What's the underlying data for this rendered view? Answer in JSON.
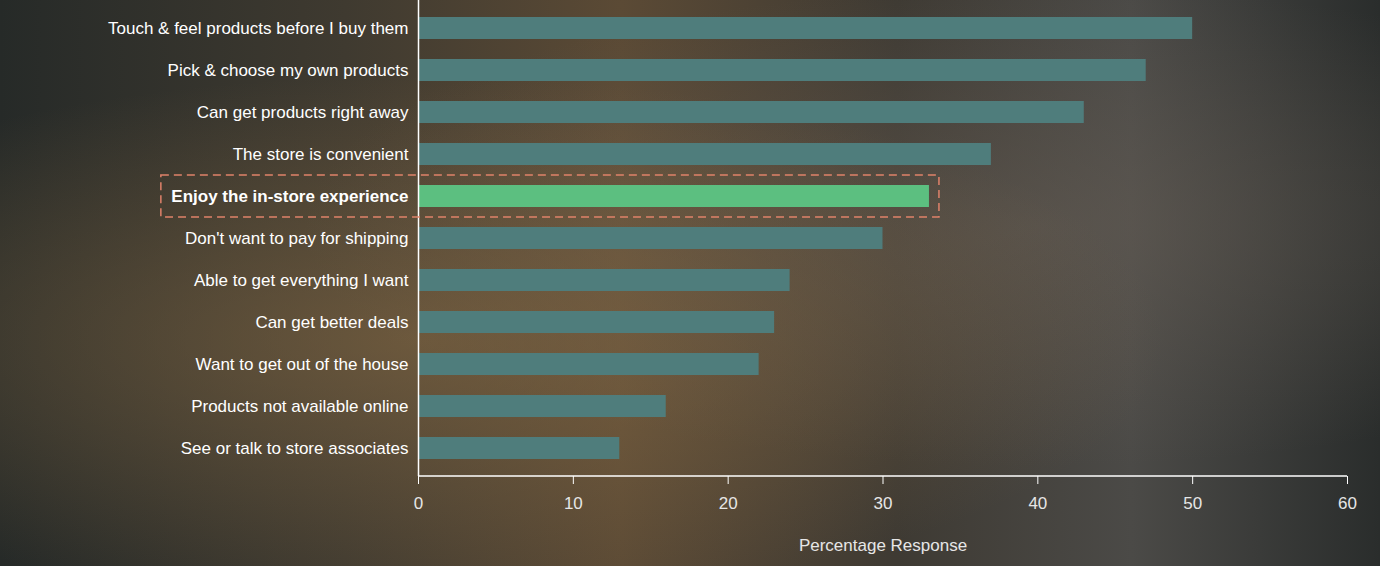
{
  "chart_data": {
    "type": "bar",
    "orientation": "horizontal",
    "categories": [
      "Touch & feel products before I buy them",
      "Pick & choose my own products",
      "Can get products right away",
      "The store is convenient",
      "Enjoy the in-store experience",
      "Don't want to pay for shipping",
      "Able to get everything I want",
      "Can get better deals",
      "Want to get out of the house",
      "Products not available online",
      "See or talk to store associates"
    ],
    "values": [
      50,
      47,
      43,
      37,
      33,
      30,
      24,
      23,
      22,
      16,
      13
    ],
    "colors": [
      "#4f7d7c",
      "#4f7d7c",
      "#4f7d7c",
      "#4f7d7c",
      "#5cbf80",
      "#4f7d7c",
      "#4f7d7c",
      "#4f7d7c",
      "#4f7d7c",
      "#4f7d7c",
      "#4f7d7c"
    ],
    "xlabel": "Percentage Response",
    "xlim": [
      0,
      60
    ],
    "xticks": [
      0,
      10,
      20,
      30,
      40,
      50,
      60
    ],
    "grid": false
  }
}
